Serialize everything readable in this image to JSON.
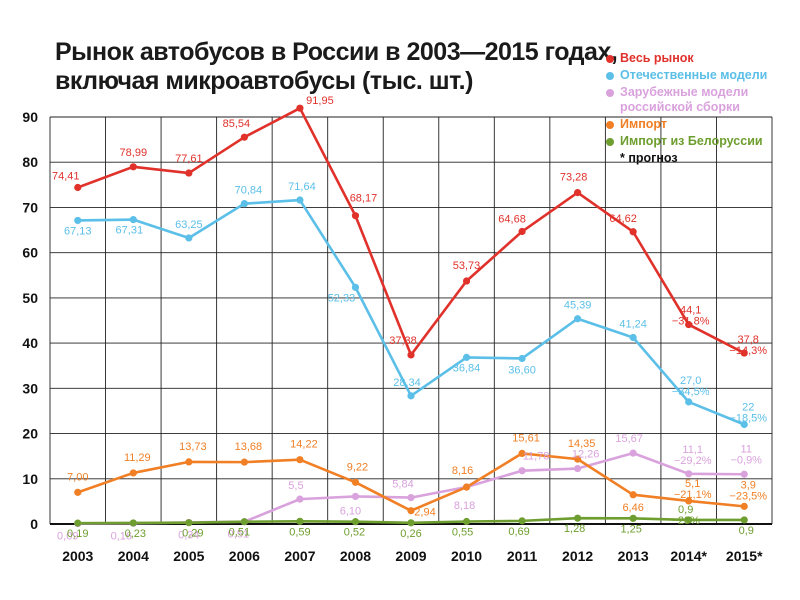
{
  "title_line1": "Рынок автобусов в России в 2003—2015 годах,",
  "title_line2": "включая микроавтобусы (тыс. шт.)",
  "legend_note": "* прогноз",
  "chart_data": {
    "type": "line",
    "title": "Рынок автобусов в России в 2003—2015 годах, включая микроавтобусы (тыс. шт.)",
    "categories": [
      "2003",
      "2004",
      "2005",
      "2006",
      "2007",
      "2008",
      "2009",
      "2010",
      "2011",
      "2012",
      "2013",
      "2014*",
      "2015*"
    ],
    "ylim": [
      0,
      90
    ],
    "yticks": [
      "0",
      "10",
      "20",
      "30",
      "40",
      "50",
      "60",
      "70",
      "80",
      "90"
    ],
    "grid": true,
    "legend_position": "top-right",
    "series": [
      {
        "name": "Весь рынок",
        "color": "#e0312b",
        "values": [
          74.41,
          78.99,
          77.61,
          85.54,
          91.95,
          68.17,
          37.38,
          53.73,
          64.68,
          73.28,
          64.62,
          44.1,
          37.8
        ],
        "labels": [
          "74,41",
          "78,99",
          "77,61",
          "85,54",
          "91,95",
          "68,17",
          "37,38",
          "53,73",
          "64,68",
          "73,28",
          "64,62",
          "44,1 −31,8%",
          "37,8 −14,3%"
        ]
      },
      {
        "name": "Отечественные модели",
        "color": "#5bbfe8",
        "values": [
          67.13,
          67.31,
          63.25,
          70.84,
          71.64,
          52.33,
          28.34,
          36.84,
          36.6,
          45.39,
          41.24,
          27.0,
          22
        ],
        "labels": [
          "67,13",
          "67,31",
          "63,25",
          "70,84",
          "71,64",
          "52,33",
          "28,34",
          "36,84",
          "36,60",
          "45,39",
          "41,24",
          "27,0 −34,5%",
          "22 −18,5%"
        ]
      },
      {
        "name": "Зарубежные модели российской сборки",
        "color": "#d9a2dd",
        "values": [
          0.09,
          0.16,
          0.34,
          0.51,
          5.5,
          6.1,
          5.84,
          8.18,
          11.78,
          12.26,
          15.67,
          11.1,
          11
        ],
        "labels": [
          "0,09",
          "0,16",
          "0,34",
          "0,51",
          "5,5",
          "6,10",
          "5,84",
          "8,18",
          "11,78",
          "12,26",
          "15,67",
          "11,1 −29,2%",
          "11 −0,9%"
        ]
      },
      {
        "name": "Импорт",
        "color": "#f07f25",
        "values": [
          7.0,
          11.29,
          13.73,
          13.68,
          14.22,
          9.22,
          2.94,
          8.16,
          15.61,
          14.35,
          6.46,
          5.1,
          3.9
        ],
        "labels": [
          "7,00",
          "11,29",
          "13,73",
          "13,68",
          "14,22",
          "9,22",
          "2,94",
          "8,16",
          "15,61",
          "14,35",
          "6,46",
          "5,1 −21,1%",
          "3,9 −23,5%"
        ]
      },
      {
        "name": "Импорт из Белоруссии",
        "color": "#6e9e2f",
        "values": [
          0.19,
          0.23,
          0.29,
          0.51,
          0.59,
          0.52,
          0.26,
          0.55,
          0.69,
          1.28,
          1.25,
          0.9,
          0.9
        ],
        "labels": [
          "0,19",
          "0,23",
          "0,29",
          "0,51",
          "0,59",
          "0,52",
          "0,26",
          "0,55",
          "0,69",
          "1,28",
          "1,25",
          "0,9 −28%",
          "0,9"
        ]
      }
    ]
  }
}
